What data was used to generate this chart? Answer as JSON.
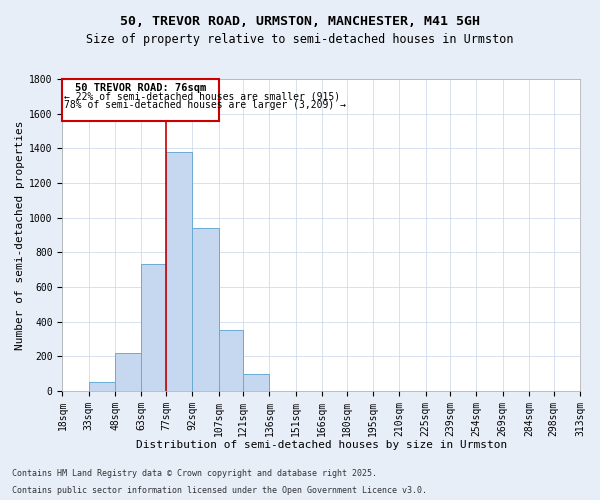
{
  "title": "50, TREVOR ROAD, URMSTON, MANCHESTER, M41 5GH",
  "subtitle": "Size of property relative to semi-detached houses in Urmston",
  "xlabel": "Distribution of semi-detached houses by size in Urmston",
  "ylabel": "Number of semi-detached properties",
  "footnote1": "Contains HM Land Registry data © Crown copyright and database right 2025.",
  "footnote2": "Contains public sector information licensed under the Open Government Licence v3.0.",
  "annotation_line1": "50 TREVOR ROAD: 76sqm",
  "annotation_line2": "← 22% of semi-detached houses are smaller (915)",
  "annotation_line3": "78% of semi-detached houses are larger (3,209) →",
  "bin_edges": [
    18,
    33,
    48,
    63,
    77,
    92,
    107,
    121,
    136,
    151,
    166,
    180,
    195,
    210,
    225,
    239,
    254,
    269,
    284,
    298,
    313
  ],
  "bin_labels": [
    "18sqm",
    "33sqm",
    "48sqm",
    "63sqm",
    "77sqm",
    "92sqm",
    "107sqm",
    "121sqm",
    "136sqm",
    "151sqm",
    "166sqm",
    "180sqm",
    "195sqm",
    "210sqm",
    "225sqm",
    "239sqm",
    "254sqm",
    "269sqm",
    "284sqm",
    "298sqm",
    "313sqm"
  ],
  "counts": [
    0,
    50,
    220,
    730,
    1380,
    940,
    350,
    100,
    0,
    0,
    0,
    0,
    0,
    0,
    0,
    0,
    0,
    0,
    0,
    0
  ],
  "bar_color": "#c5d8f0",
  "bar_edge_color": "#6aaad4",
  "vline_color": "#cc0000",
  "vline_bin": 4,
  "ylim": [
    0,
    1800
  ],
  "yticks": [
    0,
    200,
    400,
    600,
    800,
    1000,
    1200,
    1400,
    1600,
    1800
  ],
  "title_fontsize": 9.5,
  "subtitle_fontsize": 8.5,
  "label_fontsize": 8,
  "tick_fontsize": 7,
  "footnote_fontsize": 6,
  "annotation_fontsize": 7.5,
  "background_color": "#e8eef8",
  "plot_background": "#ffffff",
  "grid_color": "#c8d4e8"
}
